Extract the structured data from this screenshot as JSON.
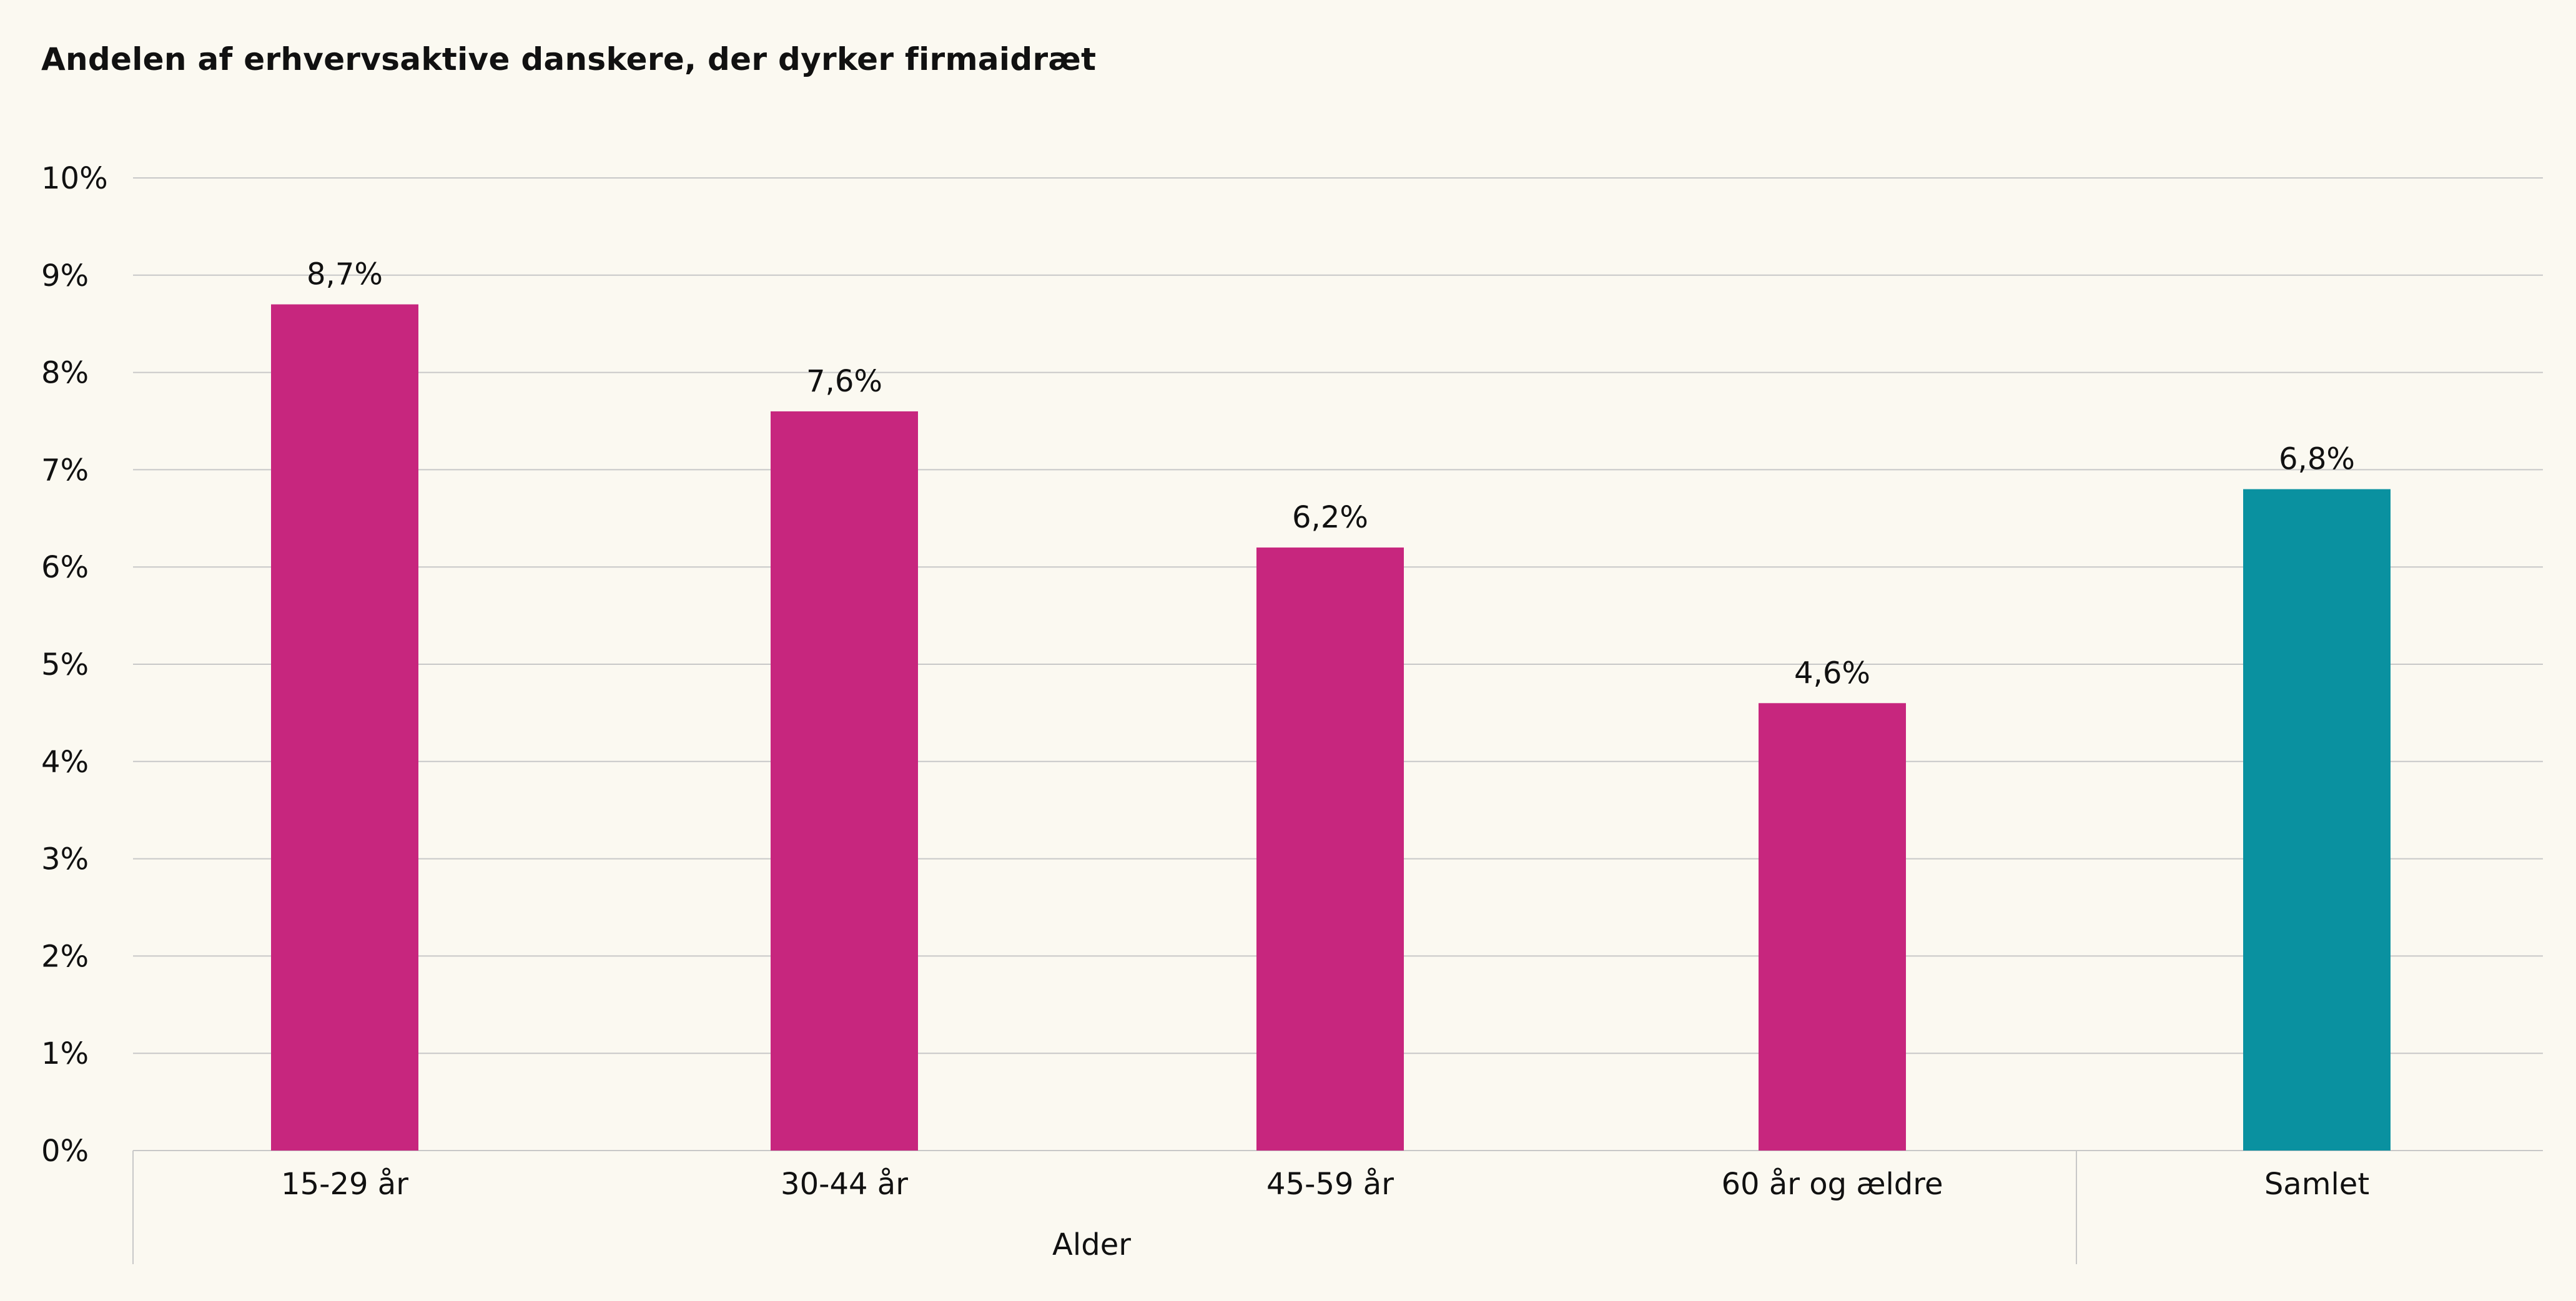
{
  "chart_data": {
    "type": "bar",
    "title": "Andelen af erhvervsaktive danskere, der dyrker firmaidræt",
    "xlabel": "",
    "ylabel": "",
    "ylim": [
      0,
      10
    ],
    "yticks": [
      0,
      1,
      2,
      3,
      4,
      5,
      6,
      7,
      8,
      9,
      10
    ],
    "ytick_labels": [
      "0%",
      "1%",
      "2%",
      "3%",
      "4%",
      "5%",
      "6%",
      "7%",
      "8%",
      "9%",
      "10%"
    ],
    "grid": true,
    "categories": [
      "15-29 år",
      "30-44 år",
      "45-59 år",
      "60 år og ældre",
      "Samlet"
    ],
    "values": [
      8.7,
      7.6,
      6.2,
      4.6,
      6.8
    ],
    "value_labels": [
      "8,7%",
      "7,6%",
      "6,2%",
      "4,6%",
      "6,8%"
    ],
    "bar_colors": [
      "#c7267e",
      "#c7267e",
      "#c7267e",
      "#c7267e",
      "#0a91a0"
    ],
    "groups": [
      {
        "label": "Alder",
        "categories": [
          "15-29 år",
          "30-44 år",
          "45-59 år",
          "60 år og ældre"
        ]
      },
      {
        "label": "",
        "categories": [
          "Samlet"
        ]
      }
    ]
  },
  "colors": {
    "age_bars": "#c7267e",
    "total_bar": "#0a91a0",
    "background": "#fbf9f1",
    "gridline": "#c8c8c8"
  }
}
